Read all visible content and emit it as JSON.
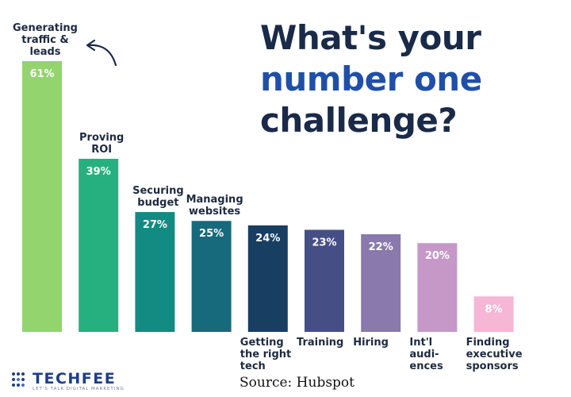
{
  "title": {
    "line1": "What's your",
    "line2": "number one",
    "line3": "challenge?"
  },
  "source": "Source: Hubspot",
  "logo": {
    "name": "TECHFEE",
    "tagline": "LET'S TALK DIGITAL MARKETING"
  },
  "chart_data": {
    "type": "bar",
    "title": "What's your number one challenge?",
    "categories": [
      [
        "Generating",
        "traffic &",
        "leads"
      ],
      [
        "Proving",
        "ROI"
      ],
      [
        "Securing",
        "budget"
      ],
      [
        "Managing",
        "websites"
      ],
      [
        "Getting",
        "the right",
        "tech"
      ],
      [
        "Training"
      ],
      [
        "Hiring"
      ],
      [
        "Int'l",
        "audi-",
        "ences"
      ],
      [
        "Finding",
        "executive",
        "sponsors"
      ]
    ],
    "values": [
      61,
      39,
      27,
      25,
      24,
      23,
      22,
      20,
      8
    ],
    "value_labels": [
      "61%",
      "39%",
      "27%",
      "25%",
      "24%",
      "23%",
      "22%",
      "20%",
      "8%"
    ],
    "label_position": [
      "top",
      "top",
      "top",
      "top",
      "bottom",
      "bottom",
      "bottom",
      "bottom",
      "bottom"
    ],
    "colors": [
      "#93d46e",
      "#26b07f",
      "#128b82",
      "#176a7b",
      "#183e62",
      "#464f85",
      "#8a79ac",
      "#c598c8",
      "#f6b6d6"
    ],
    "ylim": [
      0,
      61
    ],
    "grid": false,
    "legend": "none",
    "annotation": "curved arrow pointing to top bar"
  }
}
